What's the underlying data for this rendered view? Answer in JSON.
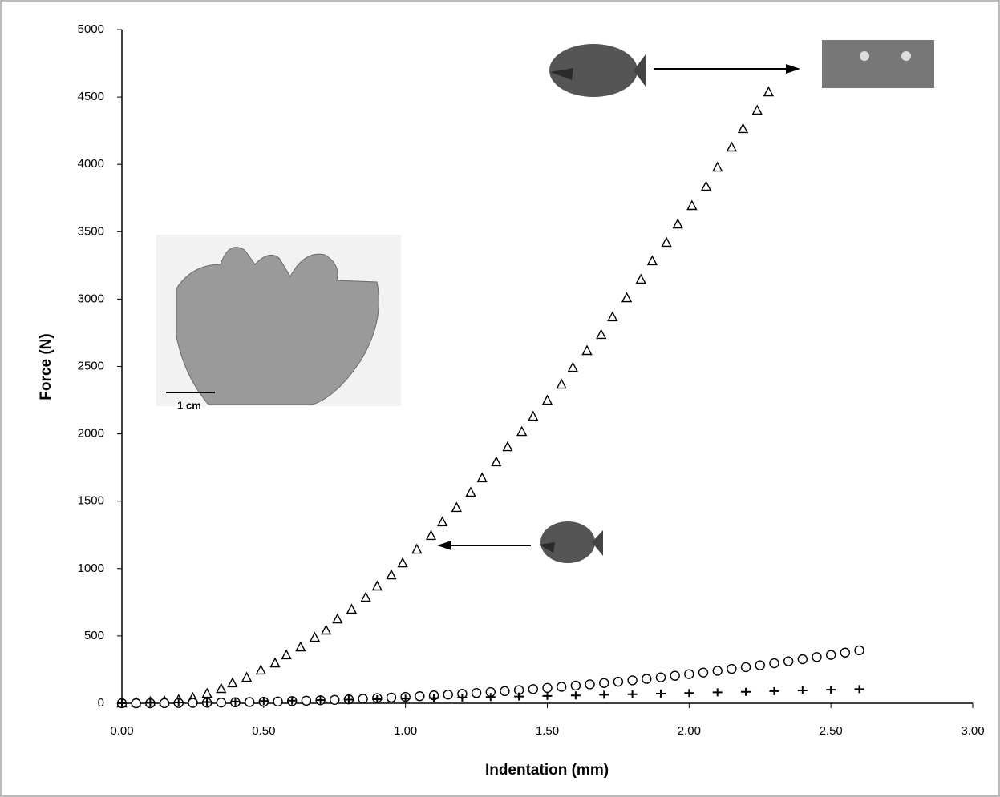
{
  "chart_data": {
    "type": "scatter",
    "x_label": "Indentation (mm)",
    "y_label": "Force (N)",
    "annotations": [
      "1 cm"
    ],
    "xlim": [
      0,
      3
    ],
    "ylim": [
      0,
      5000
    ],
    "xticks": [
      {
        "value": 0,
        "label": "0.00"
      },
      {
        "value": 0.5,
        "label": "0.50"
      },
      {
        "value": 1,
        "label": "1.00"
      },
      {
        "value": 1.5,
        "label": "1.50"
      },
      {
        "value": 2,
        "label": "2.00"
      },
      {
        "value": 2.5,
        "label": "2.50"
      },
      {
        "value": 3,
        "label": "3.00"
      }
    ],
    "yticks": [
      0,
      500,
      1000,
      1500,
      2000,
      2500,
      3000,
      3500,
      4000,
      4500,
      5000
    ],
    "grid": false,
    "series": [
      {
        "marker": "triangle",
        "color": "#000000",
        "x": [
          0,
          0.05,
          0.1,
          0.15,
          0.2,
          0.25,
          0.3,
          0.35,
          0.39,
          0.44,
          0.49,
          0.54,
          0.58,
          0.63,
          0.68,
          0.72,
          0.76,
          0.81,
          0.86,
          0.9,
          0.95,
          0.99,
          1.04,
          1.09,
          1.13,
          1.18,
          1.23,
          1.27,
          1.32,
          1.36,
          1.41,
          1.45,
          1.5,
          1.55,
          1.59,
          1.64,
          1.69,
          1.73,
          1.78,
          1.83,
          1.87,
          1.92,
          1.96,
          2.01,
          2.06,
          2.1,
          2.15,
          2.19,
          2.24,
          2.28
        ],
        "values": [
          0,
          5,
          10,
          15,
          25,
          40,
          71,
          107,
          149,
          190,
          244,
          297,
          357,
          416,
          487,
          541,
          624,
          696,
          785,
          868,
          951,
          1040,
          1141,
          1243,
          1344,
          1451,
          1564,
          1671,
          1790,
          1902,
          2015,
          2128,
          2247,
          2366,
          2491,
          2616,
          2735,
          2866,
          3008,
          3145,
          3282,
          3419,
          3555,
          3692,
          3835,
          3977,
          4126,
          4263,
          4400,
          4536
        ]
      },
      {
        "marker": "circle",
        "color": "#000000",
        "x": [
          0,
          0.05,
          0.1,
          0.15,
          0.2,
          0.25,
          0.3,
          0.35,
          0.4,
          0.45,
          0.5,
          0.55,
          0.6,
          0.65,
          0.7,
          0.75,
          0.8,
          0.85,
          0.9,
          0.95,
          1,
          1.05,
          1.1,
          1.15,
          1.2,
          1.25,
          1.3,
          1.35,
          1.4,
          1.45,
          1.5,
          1.55,
          1.6,
          1.65,
          1.7,
          1.75,
          1.8,
          1.85,
          1.9,
          1.95,
          2,
          2.05,
          2.1,
          2.15,
          2.2,
          2.25,
          2.3,
          2.35,
          2.4,
          2.45,
          2.5,
          2.55,
          2.6
        ],
        "values": [
          0,
          0,
          0,
          1,
          2,
          3,
          4,
          5,
          7,
          9,
          11,
          13,
          16,
          19,
          22,
          25,
          29,
          33,
          38,
          42,
          47,
          52,
          58,
          64,
          70,
          76,
          83,
          90,
          98,
          105,
          114,
          122,
          131,
          140,
          150,
          160,
          170,
          181,
          192,
          204,
          216,
          228,
          241,
          255,
          268,
          282,
          297,
          312,
          327,
          343,
          359,
          376,
          393
        ]
      },
      {
        "marker": "cross",
        "color": "#000000",
        "x": [
          0,
          0.1,
          0.2,
          0.3,
          0.4,
          0.5,
          0.6,
          0.7,
          0.8,
          0.9,
          1,
          1.1,
          1.2,
          1.3,
          1.4,
          1.5,
          1.6,
          1.7,
          1.8,
          1.9,
          2,
          2.1,
          2.2,
          2.3,
          2.4,
          2.5,
          2.6
        ],
        "values": [
          0,
          3,
          6,
          9,
          13,
          16,
          19,
          23,
          27,
          30,
          34,
          38,
          42,
          46,
          50,
          54,
          58,
          63,
          67,
          71,
          76,
          81,
          85,
          90,
          95,
          100,
          105
        ]
      }
    ]
  }
}
